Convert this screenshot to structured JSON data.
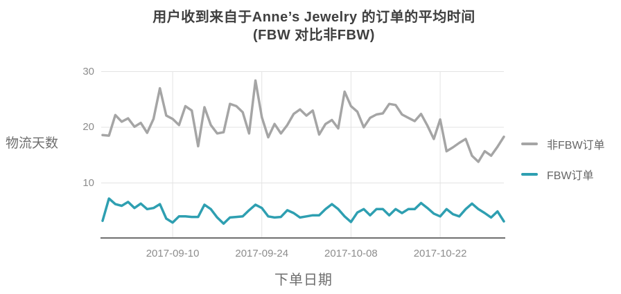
{
  "chart": {
    "title_line1": "用户收到来自于Anne’s Jewelry 的订单的平均时间",
    "title_line2": "(FBW 对比非FBW)",
    "y_axis_title": "物流天数",
    "x_axis_title": "下单日期"
  },
  "legend": {
    "items": [
      {
        "label": "非FBW订单",
        "color": "#a5a5a5"
      },
      {
        "label": "FBW订单",
        "color": "#2e9fb1"
      }
    ]
  },
  "colors": {
    "grid": "#e3e3e3",
    "axis": "#6f6f6f",
    "series_non_fbw": "#a5a5a5",
    "series_fbw": "#2e9fb1",
    "title_text": "#3f3f3f",
    "tick_text": "#8c8c8c",
    "axis_title_text": "#6e6e6e"
  },
  "chart_data": {
    "type": "line",
    "title": "用户收到来自于Anne’s Jewelry 的订单的平均时间 (FBW 对比非FBW)",
    "xlabel": "下单日期",
    "ylabel": "物流天数",
    "ylim": [
      0,
      30
    ],
    "grid": true,
    "legend_position": "right",
    "y_ticks": [
      10,
      20,
      30
    ],
    "x_ticks": [
      {
        "label": "2017-09-10",
        "index": 11
      },
      {
        "label": "2017-09-24",
        "index": 25
      },
      {
        "label": "2017-10-08",
        "index": 39
      },
      {
        "label": "2017-10-22",
        "index": 53
      }
    ],
    "x": [
      "2017-08-30",
      "2017-08-31",
      "2017-09-01",
      "2017-09-02",
      "2017-09-03",
      "2017-09-04",
      "2017-09-05",
      "2017-09-06",
      "2017-09-07",
      "2017-09-08",
      "2017-09-09",
      "2017-09-10",
      "2017-09-11",
      "2017-09-12",
      "2017-09-13",
      "2017-09-14",
      "2017-09-15",
      "2017-09-16",
      "2017-09-17",
      "2017-09-18",
      "2017-09-19",
      "2017-09-20",
      "2017-09-21",
      "2017-09-22",
      "2017-09-23",
      "2017-09-24",
      "2017-09-25",
      "2017-09-26",
      "2017-09-27",
      "2017-09-28",
      "2017-09-29",
      "2017-09-30",
      "2017-10-01",
      "2017-10-02",
      "2017-10-03",
      "2017-10-04",
      "2017-10-05",
      "2017-10-06",
      "2017-10-07",
      "2017-10-08",
      "2017-10-09",
      "2017-10-10",
      "2017-10-11",
      "2017-10-12",
      "2017-10-13",
      "2017-10-14",
      "2017-10-15",
      "2017-10-16",
      "2017-10-17",
      "2017-10-18",
      "2017-10-19",
      "2017-10-20",
      "2017-10-21",
      "2017-10-22",
      "2017-10-23",
      "2017-10-24",
      "2017-10-25",
      "2017-10-26",
      "2017-10-27",
      "2017-10-28",
      "2017-10-29",
      "2017-10-30",
      "2017-10-31",
      "2017-11-01"
    ],
    "series": [
      {
        "name": "非FBW订单",
        "color": "#a5a5a5",
        "values": [
          18.6,
          18.5,
          22.2,
          21.0,
          21.6,
          20.1,
          20.8,
          19.0,
          21.5,
          27.0,
          22.1,
          21.5,
          20.4,
          23.8,
          23.0,
          16.6,
          23.6,
          20.4,
          18.9,
          19.1,
          24.2,
          23.8,
          22.7,
          18.9,
          28.4,
          21.8,
          18.2,
          20.6,
          18.9,
          20.4,
          22.4,
          23.2,
          22.1,
          23.0,
          18.7,
          20.6,
          21.3,
          19.8,
          26.4,
          23.8,
          22.8,
          20.0,
          21.7,
          22.3,
          22.5,
          24.2,
          24.0,
          22.3,
          21.7,
          21.1,
          22.4,
          20.3,
          17.9,
          21.4,
          15.7,
          16.4,
          17.2,
          17.9,
          14.9,
          13.8,
          15.7,
          14.9,
          16.5,
          18.3
        ]
      },
      {
        "name": "FBW订单",
        "color": "#2e9fb1",
        "values": [
          3.2,
          7.2,
          6.2,
          5.9,
          6.6,
          5.5,
          6.3,
          5.3,
          5.5,
          6.2,
          3.6,
          2.9,
          4.0,
          4.0,
          3.9,
          3.9,
          6.1,
          5.3,
          3.8,
          2.7,
          3.8,
          3.9,
          4.0,
          5.1,
          6.1,
          5.5,
          4.0,
          3.8,
          3.9,
          5.1,
          4.6,
          3.8,
          4.0,
          4.2,
          4.2,
          5.3,
          6.2,
          5.3,
          4.0,
          3.0,
          4.7,
          5.3,
          4.2,
          5.3,
          5.3,
          4.2,
          5.3,
          4.6,
          5.3,
          5.3,
          6.4,
          5.5,
          4.5,
          4.0,
          5.3,
          4.4,
          4.0,
          5.3,
          6.3,
          5.3,
          4.6,
          3.8,
          4.9,
          3.1
        ]
      }
    ]
  }
}
